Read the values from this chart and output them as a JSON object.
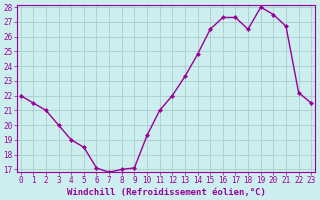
{
  "x": [
    0,
    1,
    2,
    3,
    4,
    5,
    6,
    7,
    8,
    9,
    10,
    11,
    12,
    13,
    14,
    15,
    16,
    17,
    18,
    19,
    20,
    21,
    22,
    23
  ],
  "y": [
    22,
    21.5,
    21,
    20,
    19,
    18.5,
    17.1,
    16.8,
    17.0,
    17.1,
    19.3,
    21.0,
    22.0,
    23.3,
    24.8,
    26.5,
    27.3,
    27.3,
    26.5,
    28.0,
    27.5,
    26.7,
    22.2,
    21.5
  ],
  "xlabel": "Windchill (Refroidissement éolien,°C)",
  "ylim_min": 17,
  "ylim_max": 28,
  "xlim_min": 0,
  "xlim_max": 23,
  "yticks": [
    17,
    18,
    19,
    20,
    21,
    22,
    23,
    24,
    25,
    26,
    27,
    28
  ],
  "xticks": [
    0,
    1,
    2,
    3,
    4,
    5,
    6,
    7,
    8,
    9,
    10,
    11,
    12,
    13,
    14,
    15,
    16,
    17,
    18,
    19,
    20,
    21,
    22,
    23
  ],
  "line_color": "#990099",
  "marker": "D",
  "marker_size": 2.0,
  "bg_color": "#cceeee",
  "grid_color": "#aacccc",
  "tick_label_fontsize": 5.5,
  "xlabel_fontsize": 6.5,
  "line_width": 1.0
}
